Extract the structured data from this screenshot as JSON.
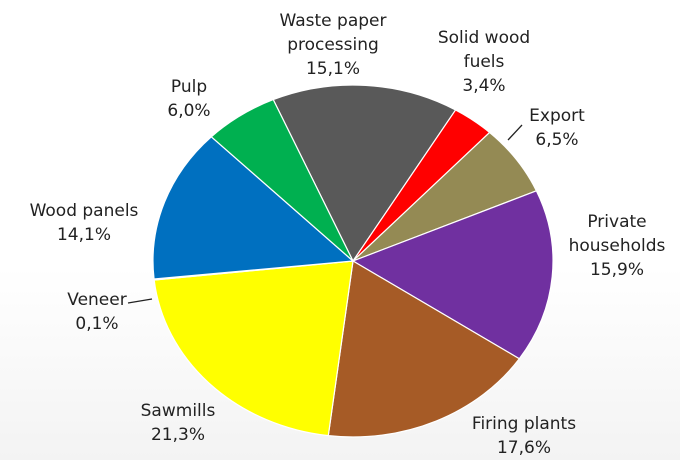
{
  "chart_data": {
    "type": "pie",
    "title": "",
    "slices": [
      {
        "name": "Waste paper processing",
        "label_lines": [
          "Waste paper",
          "processing"
        ],
        "pct_label": "15,1%",
        "value": 15.1,
        "color": "#595959"
      },
      {
        "name": "Solid wood fuels",
        "label_lines": [
          "Solid wood",
          "fuels"
        ],
        "pct_label": "3,4%",
        "value": 3.4,
        "color": "#ff0000"
      },
      {
        "name": "Export",
        "label_lines": [
          "Export"
        ],
        "pct_label": "6,5%",
        "value": 6.5,
        "color": "#948a54"
      },
      {
        "name": "Private households",
        "label_lines": [
          "Private",
          "households"
        ],
        "pct_label": "15,9%",
        "value": 15.9,
        "color": "#7030a0"
      },
      {
        "name": "Firing plants",
        "label_lines": [
          "Firing plants"
        ],
        "pct_label": "17,6%",
        "value": 17.6,
        "color": "#a65b26"
      },
      {
        "name": "Sawmills",
        "label_lines": [
          "Sawmills"
        ],
        "pct_label": "21,3%",
        "value": 21.3,
        "color": "#ffff00"
      },
      {
        "name": "Veneer",
        "label_lines": [
          "Veneer"
        ],
        "pct_label": "0,1%",
        "value": 0.1,
        "color": "#7f7f7f"
      },
      {
        "name": "Wood panels",
        "label_lines": [
          "Wood panels"
        ],
        "pct_label": "14,1%",
        "value": 14.1,
        "color": "#0070c0"
      },
      {
        "name": "Pulp",
        "label_lines": [
          "Pulp"
        ],
        "pct_label": "6,0%",
        "value": 6.0,
        "color": "#00b050"
      }
    ]
  }
}
